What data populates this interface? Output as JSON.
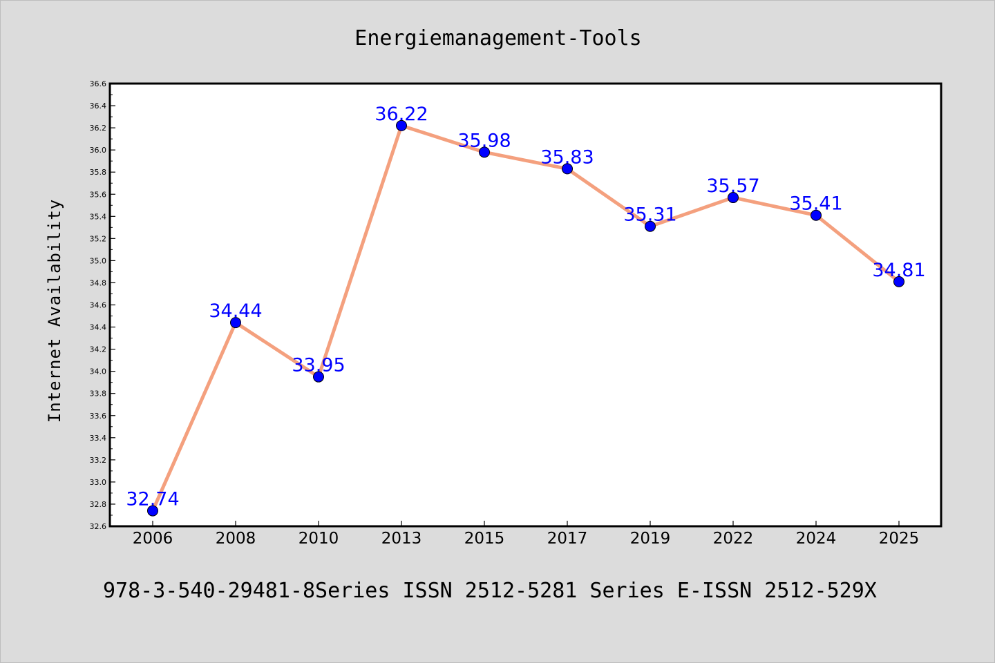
{
  "chart_data": {
    "type": "line",
    "title": "Energiemanagement-Tools",
    "xlabel": "",
    "ylabel": "Internet Availability",
    "categories": [
      "2006",
      "2008",
      "2010",
      "2013",
      "2015",
      "2017",
      "2019",
      "2022",
      "2024",
      "2025"
    ],
    "series": [
      {
        "values": [
          32.74,
          34.44,
          33.95,
          36.22,
          35.98,
          35.83,
          35.31,
          35.57,
          35.41,
          34.81
        ],
        "data_labels": [
          "32.74",
          "34.44",
          "33.95",
          "36.22",
          "35.98",
          "35.83",
          "35.31",
          "35.57",
          "35.41",
          "34.81"
        ],
        "line_color": "#f4a07e",
        "marker_color": "#0000ff",
        "label_color": "#0000ff"
      }
    ],
    "ylim": [
      32.6,
      36.6
    ],
    "yticks": [
      "32.6",
      "32.8",
      "33.0",
      "33.2",
      "33.4",
      "33.6",
      "33.8",
      "34.0",
      "34.2",
      "34.4",
      "34.6",
      "34.8",
      "35.0",
      "35.2",
      "35.4",
      "35.6",
      "35.8",
      "36.0",
      "36.2",
      "36.4",
      "36.6"
    ],
    "grid": false,
    "legend": "none"
  },
  "footer": {
    "text": "978-3-540-29481-8Series ISSN 2512-5281 Series E-ISSN 2512-529X"
  },
  "colors": {
    "background": "#dcdcdc",
    "plot_background": "#ffffff",
    "frame": "#000000"
  }
}
